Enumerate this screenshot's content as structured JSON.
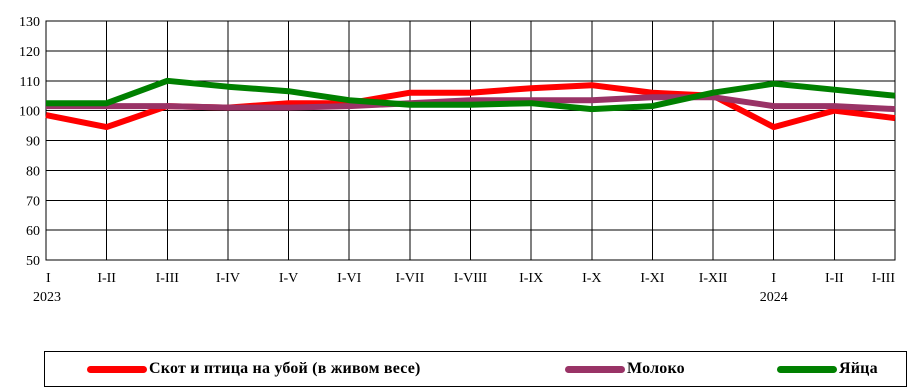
{
  "chart_data": {
    "type": "line",
    "categories": [
      "I",
      "I-II",
      "I-III",
      "I-IV",
      "I-V",
      "I-VI",
      "I-VII",
      "I-VIII",
      "I-IX",
      "I-X",
      "I-XI",
      "I-XII",
      "I",
      "I-II",
      "I-III"
    ],
    "category_years": [
      "2023",
      "",
      "",
      "",
      "",
      "",
      "",
      "",
      "",
      "",
      "",
      "",
      "2024",
      "",
      ""
    ],
    "yticks": [
      "50",
      "60",
      "70",
      "80",
      "90",
      "100",
      "110",
      "120",
      "130"
    ],
    "ylim": [
      50,
      130
    ],
    "grid": true,
    "legend_position": "bottom",
    "series": [
      {
        "name": "Скот и птица на убой (в живом весе)",
        "color": "#ff0000",
        "values": [
          98.5,
          94.5,
          101.5,
          101.0,
          102.5,
          102.5,
          106.0,
          106.0,
          107.5,
          108.5,
          106.0,
          105.0,
          94.5,
          100.0,
          97.5
        ]
      },
      {
        "name": "Молоко",
        "color": "#993366",
        "values": [
          101.5,
          101.5,
          101.5,
          101.0,
          101.0,
          101.5,
          102.5,
          103.5,
          103.5,
          103.5,
          104.5,
          104.5,
          101.5,
          101.5,
          100.5
        ]
      },
      {
        "name": "Яйца",
        "color": "#008000",
        "values": [
          102.5,
          102.5,
          110.0,
          108.0,
          106.5,
          103.5,
          102.0,
          102.0,
          102.5,
          100.5,
          101.5,
          106.0,
          109.0,
          107.0,
          105.0
        ]
      }
    ]
  }
}
